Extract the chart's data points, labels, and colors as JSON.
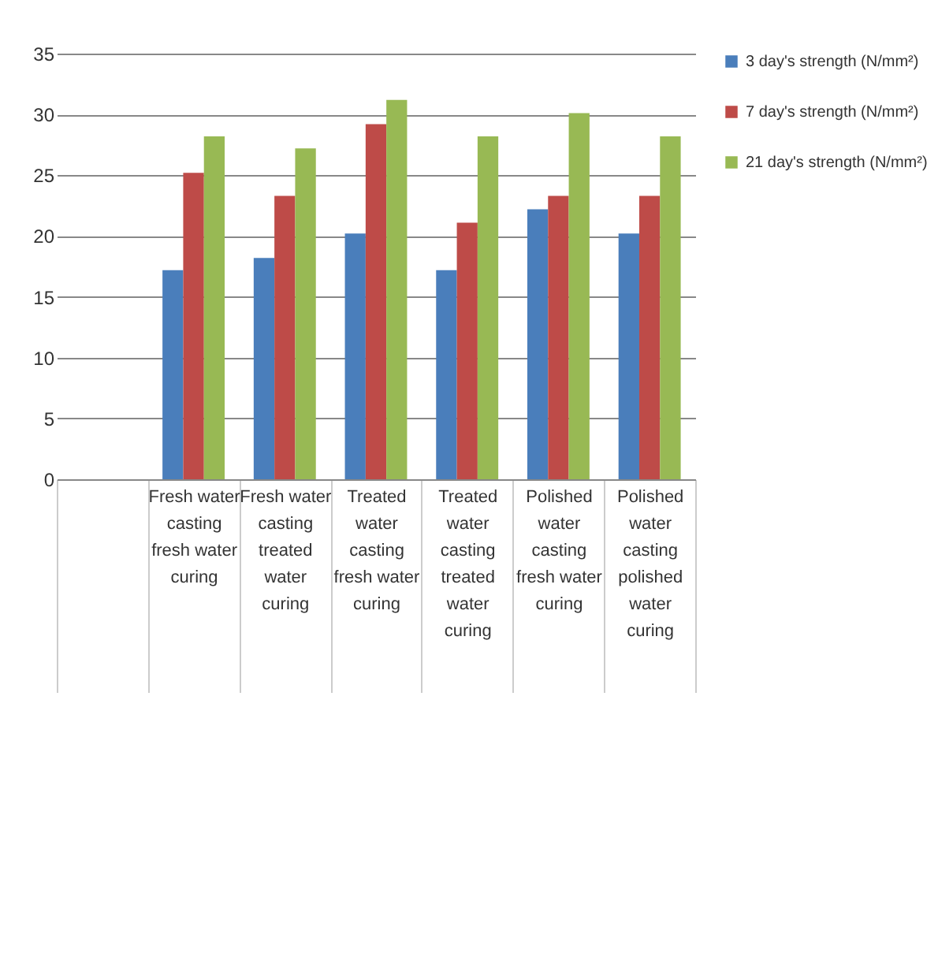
{
  "chart_data": {
    "type": "bar",
    "categories": [
      null,
      "Fresh water casting fresh water curing",
      "Fresh water casting treated water curing",
      "Treated water casting fresh water curing",
      "Treated water casting treated water curing",
      "Polished water casting fresh water curing",
      "Polished water casting polished water curing"
    ],
    "series": [
      {
        "name": "3 day's strength (N/mm²)",
        "color": "#4a7ebb",
        "values": [
          null,
          17.2,
          18.2,
          20.2,
          17.2,
          22.2,
          20.2
        ]
      },
      {
        "name": "7 day's strength (N/mm²)",
        "color": "#be4b48",
        "values": [
          null,
          25.2,
          23.3,
          29.2,
          21.1,
          23.3,
          23.3
        ]
      },
      {
        "name": "21 day's strength (N/mm²)",
        "color": "#98b954",
        "values": [
          null,
          28.2,
          27.2,
          31.2,
          28.2,
          30.1,
          28.2
        ]
      }
    ],
    "ylim": [
      0,
      35
    ],
    "yticks": [
      0,
      5,
      10,
      15,
      20,
      25,
      30,
      35
    ],
    "grid": "y",
    "legend": "right"
  }
}
